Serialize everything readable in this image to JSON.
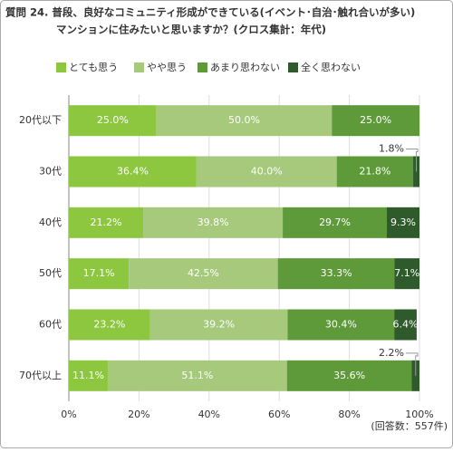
{
  "chart_data": {
    "type": "stacked-bar-horizontal",
    "title": "質問 24. 普段、良好なコミュニティ形成ができている(イベント･自治･触れ合いが多い)",
    "subtitle": "マンションに住みたいと思いますか？(クロス集計：年代)",
    "note": "(回答数：557件)",
    "categories": [
      "20代以下",
      "30代",
      "40代",
      "50代",
      "60代",
      "70代以上"
    ],
    "series": [
      {
        "name": "とても思う",
        "color": "#8dc63f",
        "values": [
          25.0,
          36.4,
          21.2,
          17.1,
          23.2,
          11.1
        ],
        "value_labels": [
          "25.0%",
          "36.4%",
          "21.2%",
          "17.1%",
          "23.2%",
          "11.1%"
        ]
      },
      {
        "name": "やや思う",
        "color": "#a6c97c",
        "values": [
          50.0,
          40.0,
          39.8,
          42.5,
          39.2,
          51.1
        ],
        "value_labels": [
          "50.0%",
          "40.0%",
          "39.8%",
          "42.5%",
          "39.2%",
          "51.1%"
        ]
      },
      {
        "name": "あまり思わない",
        "color": "#5e9a3a",
        "values": [
          25.0,
          21.8,
          29.7,
          33.3,
          30.4,
          35.6
        ],
        "value_labels": [
          "25.0%",
          "21.8%",
          "29.7%",
          "33.3%",
          "30.4%",
          "35.6%"
        ]
      },
      {
        "name": "全く思わない",
        "color": "#2f5a2b",
        "values": [
          0,
          1.8,
          9.3,
          7.1,
          6.4,
          2.2
        ],
        "value_labels": [
          null,
          "1.8%",
          "9.3%",
          "7.1%",
          "6.4%",
          "2.2%"
        ]
      }
    ],
    "xlim": [
      0,
      100
    ],
    "xticks": [
      {
        "value": 0,
        "label": "0%"
      },
      {
        "value": 20,
        "label": "20%"
      },
      {
        "value": 40,
        "label": "40%"
      },
      {
        "value": 60,
        "label": "60%"
      },
      {
        "value": 80,
        "label": "80%"
      },
      {
        "value": 100,
        "label": "100%"
      }
    ],
    "grid": true,
    "legend": "top"
  }
}
